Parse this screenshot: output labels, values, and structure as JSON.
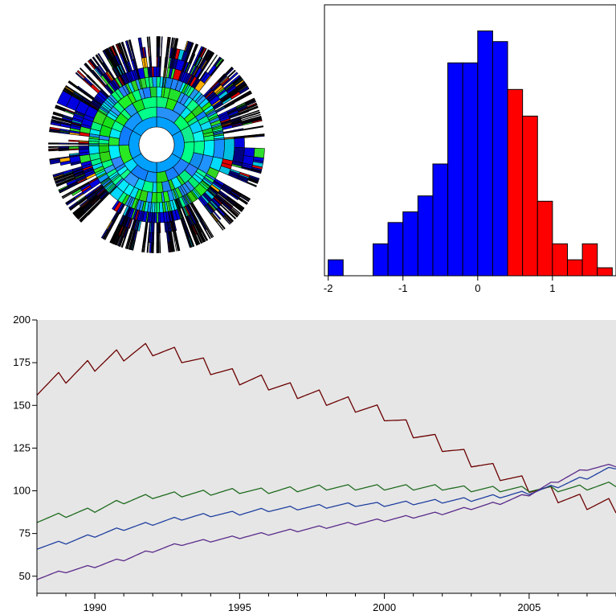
{
  "chart_data": [
    {
      "type": "sunburst",
      "rings": 9,
      "color_scale": [
        "#00e5ff",
        "#00ff00",
        "#ffd000",
        "#ff0000",
        "#0000ff"
      ],
      "center_color": "#ffffff"
    },
    {
      "type": "histogram",
      "xlim": [
        -2.05,
        1.85
      ],
      "xticks": [
        -2,
        -1,
        0,
        1
      ],
      "xtick_labels": [
        "-2",
        "-1",
        "0",
        "1"
      ],
      "bins": [
        {
          "x0": -2.0,
          "x1": -1.8,
          "value": 0.06
        },
        {
          "x0": -1.8,
          "x1": -1.6,
          "value": 0
        },
        {
          "x0": -1.6,
          "x1": -1.4,
          "value": 0
        },
        {
          "x0": -1.4,
          "x1": -1.2,
          "value": 0.12
        },
        {
          "x0": -1.2,
          "x1": -1.0,
          "value": 0.2
        },
        {
          "x0": -1.0,
          "x1": -0.8,
          "value": 0.24
        },
        {
          "x0": -0.8,
          "x1": -0.6,
          "value": 0.3
        },
        {
          "x0": -0.6,
          "x1": -0.4,
          "value": 0.42
        },
        {
          "x0": -0.4,
          "x1": -0.2,
          "value": 0.8
        },
        {
          "x0": -0.2,
          "x1": 0.0,
          "value": 0.8
        },
        {
          "x0": 0.0,
          "x1": 0.2,
          "value": 0.92
        },
        {
          "x0": 0.2,
          "x1": 0.4,
          "value": 0.88
        },
        {
          "x0": 0.4,
          "x1": 0.6,
          "value": 0.7
        },
        {
          "x0": 0.6,
          "x1": 0.8,
          "value": 0.6
        },
        {
          "x0": 0.8,
          "x1": 1.0,
          "value": 0.28
        },
        {
          "x0": 1.0,
          "x1": 1.2,
          "value": 0.12
        },
        {
          "x0": 1.2,
          "x1": 1.4,
          "value": 0.06
        },
        {
          "x0": 1.4,
          "x1": 1.6,
          "value": 0.12
        },
        {
          "x0": 1.6,
          "x1": 1.8,
          "value": 0.03
        }
      ],
      "split_at": 0.4,
      "colors": {
        "below": "#0000ff",
        "above": "#ff0000"
      }
    },
    {
      "type": "line",
      "xlim": [
        1988,
        2008
      ],
      "ylim": [
        40,
        200
      ],
      "xticks": [
        1990,
        1995,
        2000,
        2005
      ],
      "xtick_labels": [
        "1990",
        "1995",
        "2000",
        "2005"
      ],
      "yticks": [
        50,
        75,
        100,
        125,
        150,
        175,
        200
      ],
      "ytick_labels": [
        "50",
        "75",
        "100",
        "125",
        "150",
        "175",
        "200"
      ],
      "background": "#e6e6e6",
      "series": [
        {
          "color": "#6b0000",
          "seasonal_amp": 4,
          "points": [
            [
              1988,
              160
            ],
            [
              1989,
              167
            ],
            [
              1990,
              174
            ],
            [
              1991,
              180
            ],
            [
              1992,
              183
            ],
            [
              1993,
              179
            ],
            [
              1994,
              172
            ],
            [
              1995,
              166
            ],
            [
              1996,
              163
            ],
            [
              1997,
              158
            ],
            [
              1998,
              154
            ],
            [
              1999,
              150
            ],
            [
              2000,
              145
            ],
            [
              2001,
              135
            ],
            [
              2002,
              127
            ],
            [
              2003,
              118
            ],
            [
              2004,
              110
            ],
            [
              2005,
              103
            ],
            [
              2006,
              97
            ],
            [
              2007,
              93
            ],
            [
              2008,
              91
            ]
          ]
        },
        {
          "color": "#1f6b1f",
          "seasonal_amp": 1.6,
          "points": [
            [
              1988,
              83
            ],
            [
              1989,
              86
            ],
            [
              1990,
              89
            ],
            [
              1991,
              94
            ],
            [
              1992,
              97
            ],
            [
              1993,
              98
            ],
            [
              1994,
              99
            ],
            [
              1995,
              100
            ],
            [
              1996,
              100
            ],
            [
              1997,
              101
            ],
            [
              1998,
              102
            ],
            [
              1999,
              102
            ],
            [
              2000,
              102
            ],
            [
              2001,
              102
            ],
            [
              2002,
              102
            ],
            [
              2003,
              101
            ],
            [
              2004,
              101
            ],
            [
              2005,
              101
            ],
            [
              2006,
              101
            ],
            [
              2007,
              102
            ],
            [
              2008,
              104
            ]
          ]
        },
        {
          "color": "#1f3f9f",
          "seasonal_amp": 1.2,
          "points": [
            [
              1988,
              67
            ],
            [
              1989,
              70
            ],
            [
              1990,
              74
            ],
            [
              1991,
              78
            ],
            [
              1992,
              81
            ],
            [
              1993,
              84
            ],
            [
              1994,
              86
            ],
            [
              1995,
              87
            ],
            [
              1996,
              89
            ],
            [
              1997,
              90
            ],
            [
              1998,
              91
            ],
            [
              1999,
              92
            ],
            [
              2000,
              92
            ],
            [
              2001,
              93
            ],
            [
              2002,
              94
            ],
            [
              2003,
              95
            ],
            [
              2004,
              97
            ],
            [
              2005,
              99
            ],
            [
              2006,
              103
            ],
            [
              2007,
              108
            ],
            [
              2008,
              114
            ]
          ]
        },
        {
          "color": "#5a2a8a",
          "seasonal_amp": 1.0,
          "points": [
            [
              1988,
              49
            ],
            [
              1989,
              53
            ],
            [
              1990,
              56
            ],
            [
              1991,
              60
            ],
            [
              1992,
              65
            ],
            [
              1993,
              69
            ],
            [
              1994,
              71
            ],
            [
              1995,
              73
            ],
            [
              1996,
              75
            ],
            [
              1997,
              77
            ],
            [
              1998,
              79
            ],
            [
              1999,
              81
            ],
            [
              2000,
              83
            ],
            [
              2001,
              85
            ],
            [
              2002,
              87
            ],
            [
              2003,
              90
            ],
            [
              2004,
              93
            ],
            [
              2005,
              98
            ],
            [
              2006,
              106
            ],
            [
              2007,
              113
            ],
            [
              2008,
              115
            ]
          ]
        }
      ]
    }
  ]
}
